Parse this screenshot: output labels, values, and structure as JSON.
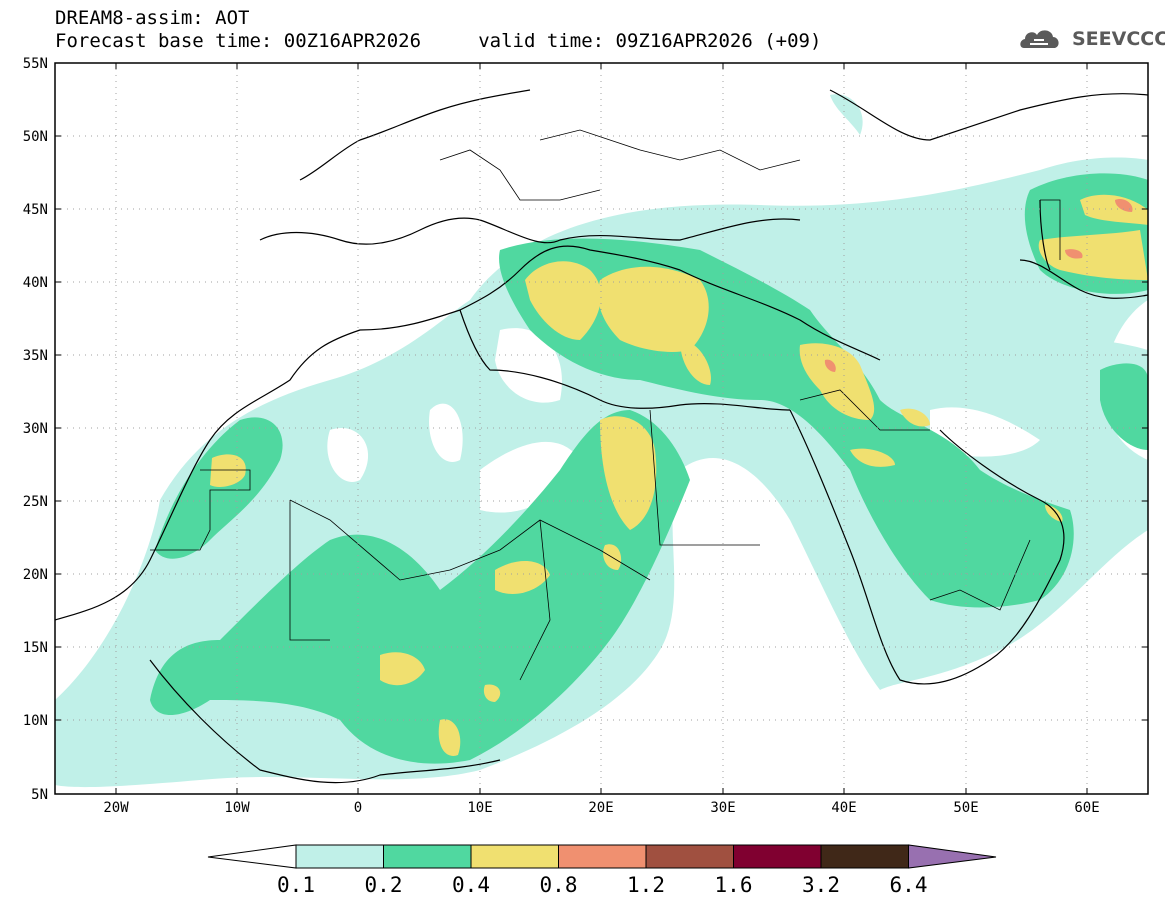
{
  "header": {
    "line1": "DREAM8-assim: AOT",
    "line2": "Forecast base time: 00Z16APR2026     valid time: 09Z16APR2026 (+09)"
  },
  "logo": {
    "text": "SEEVCCC",
    "icon": "cloud-logo-icon"
  },
  "map": {
    "region": {
      "lon_min": -25,
      "lon_max": 65,
      "lat_min": 5,
      "lat_max": 55
    },
    "lat_labels": [
      "5N",
      "10N",
      "15N",
      "20N",
      "25N",
      "30N",
      "35N",
      "40N",
      "45N",
      "50N",
      "55N"
    ],
    "lon_labels": [
      "20W",
      "10W",
      "0",
      "10E",
      "20E",
      "30E",
      "40E",
      "50E",
      "60E"
    ],
    "grid": "dotted"
  },
  "colorbar": {
    "labels": [
      "0.1",
      "0.2",
      "0.4",
      "0.8",
      "1.2",
      "1.6",
      "3.2",
      "6.4"
    ],
    "colors": [
      "#ffffff",
      "#c0f0e8",
      "#50d8a0",
      "#f0e070",
      "#f09070",
      "#a05040",
      "#800030",
      "#402818",
      "#9870b0"
    ]
  }
}
